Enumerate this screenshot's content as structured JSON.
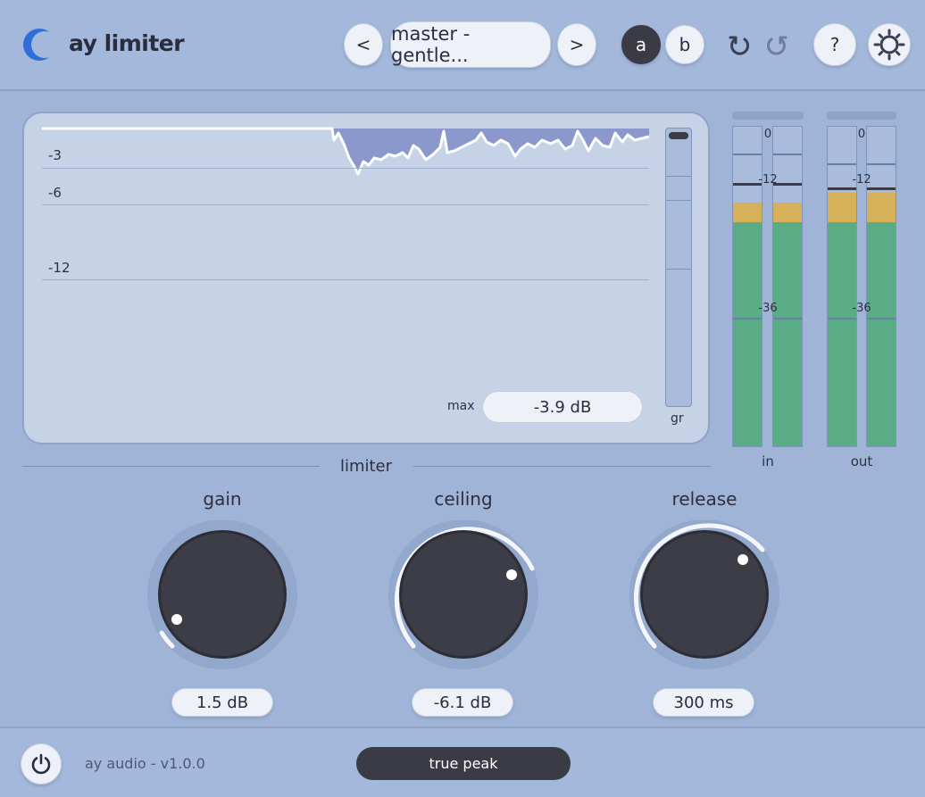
{
  "app": {
    "title": "ay limiter"
  },
  "header": {
    "prev_label": "<",
    "next_label": ">",
    "preset_name": "master - gentle...",
    "ab": {
      "a": "a",
      "b": "b",
      "active": "a"
    },
    "help_label": "?",
    "icons": {
      "logo": "crescent-logo-icon",
      "undo": "undo-icon",
      "redo": "redo-icon",
      "settings": "gear-icon"
    }
  },
  "display": {
    "db_labels": [
      "-3",
      "-6",
      "-12"
    ],
    "max_label": "max",
    "max_value": "-3.9 dB",
    "gr_label": "gr"
  },
  "meters": {
    "scale": [
      "0",
      "-12",
      "-36"
    ],
    "in_label": "in",
    "out_label": "out"
  },
  "section": {
    "title": "limiter"
  },
  "knobs": {
    "gain": {
      "label": "gain",
      "value": "1.5 dB"
    },
    "ceiling": {
      "label": "ceiling",
      "value": "-6.1 dB"
    },
    "release": {
      "label": "release",
      "value": "300 ms"
    }
  },
  "footer": {
    "brand": "ay audio  -  v1.0.0",
    "mode_label": "true peak",
    "icons": {
      "power": "power-icon"
    }
  },
  "colors": {
    "background": "#9fb4d6",
    "accent_dark": "#3b3b46",
    "meter_green": "#5aac86",
    "meter_yellow": "#d7b05a",
    "logo_blue": "#2f6ed8"
  }
}
